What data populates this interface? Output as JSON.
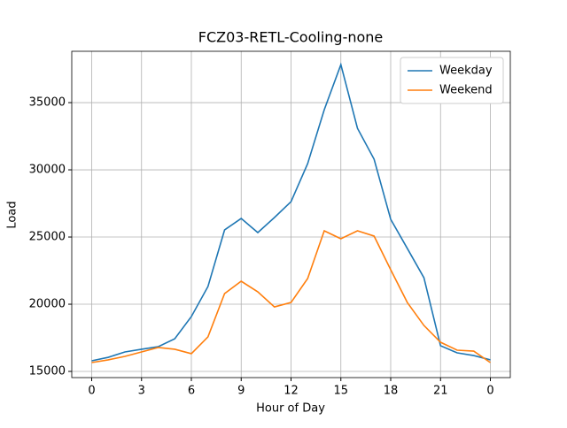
{
  "chart_data": {
    "type": "line",
    "title": "FCZ03-RETL-Cooling-none",
    "xlabel": "Hour of Day",
    "ylabel": "Load",
    "x": [
      0,
      1,
      2,
      3,
      4,
      5,
      6,
      7,
      8,
      9,
      10,
      11,
      12,
      13,
      14,
      15,
      16,
      17,
      18,
      19,
      20,
      21,
      22,
      23,
      24
    ],
    "series": [
      {
        "name": "Weekday",
        "color": "#1f77b4",
        "values": [
          15790,
          16050,
          16450,
          16650,
          16840,
          17430,
          19080,
          21320,
          25530,
          26380,
          25330,
          26450,
          27630,
          30460,
          34470,
          37830,
          33090,
          30790,
          26320,
          24150,
          21970,
          16910,
          16380,
          16180,
          15860
        ]
      },
      {
        "name": "Weekend",
        "color": "#ff7f0e",
        "values": [
          15660,
          15860,
          16120,
          16450,
          16780,
          16650,
          16320,
          17570,
          20790,
          21710,
          20920,
          19800,
          20130,
          21910,
          25460,
          24870,
          25460,
          25070,
          22570,
          20130,
          18420,
          17170,
          16580,
          16510,
          15660
        ]
      }
    ],
    "xlim": [
      -1.2,
      25.2
    ],
    "ylim": [
      14540,
      38820
    ],
    "xticks": [
      0,
      3,
      6,
      9,
      12,
      15,
      18,
      21,
      {
        "value": 24,
        "label": "0"
      }
    ],
    "yticks": [
      15000,
      20000,
      25000,
      30000,
      35000
    ],
    "grid": true,
    "legend": "upper-right"
  }
}
